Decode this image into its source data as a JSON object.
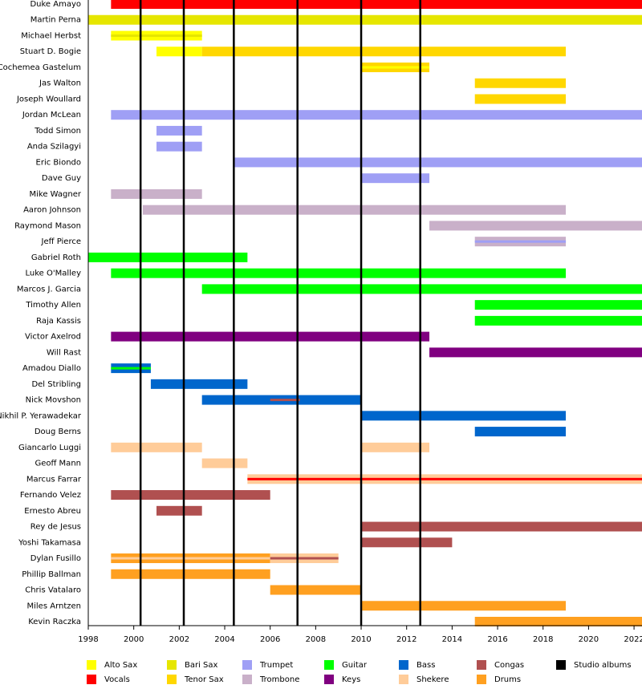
{
  "chart_data": {
    "type": "timeline",
    "xlim": [
      1998,
      2022.35
    ],
    "xticks": [
      1998,
      2000,
      2002,
      2004,
      2006,
      2008,
      2010,
      2012,
      2014,
      2016,
      2018,
      2020,
      2022
    ],
    "roles": [
      {
        "name": "Alto Sax",
        "color": "#ffff00"
      },
      {
        "name": "Vocals",
        "color": "#ff0000"
      },
      {
        "name": "Bari Sax",
        "color": "#e6e600"
      },
      {
        "name": "Tenor Sax",
        "color": "#ffd700"
      },
      {
        "name": "Trumpet",
        "color": "#9f9ff5"
      },
      {
        "name": "Trombone",
        "color": "#c9b0c9"
      },
      {
        "name": "Guitar",
        "color": "#00ff00"
      },
      {
        "name": "Keys",
        "color": "#800080"
      },
      {
        "name": "Bass",
        "color": "#0066cc"
      },
      {
        "name": "Shekere",
        "color": "#ffcc99"
      },
      {
        "name": "Congas",
        "color": "#b05050"
      },
      {
        "name": "Drums",
        "color": "#ffa020"
      }
    ],
    "albums": {
      "name": "Studio albums",
      "color": "#000000",
      "values": [
        2000.3,
        2002.2,
        2004.4,
        2007.2,
        2010.0,
        2012.6
      ]
    },
    "members": [
      {
        "name": "Duke Amayo",
        "bars": [
          {
            "start": 1999,
            "end": 2022.35,
            "role": 1
          }
        ]
      },
      {
        "name": "Martin Perna",
        "bars": [
          {
            "start": 1998,
            "end": 2022.35,
            "role": 2
          }
        ]
      },
      {
        "name": "Michael Herbst",
        "bars": [
          {
            "start": 1999,
            "end": 2003,
            "role": 0,
            "role2": 2
          }
        ]
      },
      {
        "name": "Stuart D. Bogie",
        "bars": [
          {
            "start": 2001,
            "end": 2003,
            "role": 0
          },
          {
            "start": 2003,
            "end": 2019,
            "role": 3
          }
        ]
      },
      {
        "name": "Cochemea Gastelum",
        "bars": [
          {
            "start": 2010,
            "end": 2013,
            "role": 3,
            "role2": 0
          }
        ]
      },
      {
        "name": "Jas Walton",
        "bars": [
          {
            "start": 2015,
            "end": 2019,
            "role": 3
          }
        ]
      },
      {
        "name": "Joseph Woullard",
        "bars": [
          {
            "start": 2015,
            "end": 2019,
            "role": 3
          }
        ]
      },
      {
        "name": "Jordan McLean",
        "bars": [
          {
            "start": 1999,
            "end": 2022.35,
            "role": 4
          }
        ]
      },
      {
        "name": "Todd Simon",
        "bars": [
          {
            "start": 2001,
            "end": 2003,
            "role": 4
          }
        ]
      },
      {
        "name": "Anda Szilagyi",
        "bars": [
          {
            "start": 2001,
            "end": 2003,
            "role": 4
          }
        ]
      },
      {
        "name": "Eric Biondo",
        "bars": [
          {
            "start": 2004.4,
            "end": 2022.35,
            "role": 4
          }
        ]
      },
      {
        "name": "Dave Guy",
        "bars": [
          {
            "start": 2010,
            "end": 2013,
            "role": 4
          }
        ]
      },
      {
        "name": "Mike Wagner",
        "bars": [
          {
            "start": 1999,
            "end": 2003,
            "role": 5
          }
        ]
      },
      {
        "name": "Aaron Johnson",
        "bars": [
          {
            "start": 2000.4,
            "end": 2019,
            "role": 5
          }
        ]
      },
      {
        "name": "Raymond Mason",
        "bars": [
          {
            "start": 2013,
            "end": 2022.35,
            "role": 5
          }
        ]
      },
      {
        "name": "Jeff Pierce",
        "bars": [
          {
            "start": 2015,
            "end": 2019,
            "role": 5,
            "role2": 4
          }
        ]
      },
      {
        "name": "Gabriel Roth",
        "bars": [
          {
            "start": 1998,
            "end": 2005,
            "role": 6
          }
        ]
      },
      {
        "name": "Luke O'Malley",
        "bars": [
          {
            "start": 1999,
            "end": 2019,
            "role": 6
          }
        ]
      },
      {
        "name": "Marcos J. Garcia",
        "bars": [
          {
            "start": 2003,
            "end": 2022.35,
            "role": 6
          }
        ]
      },
      {
        "name": "Timothy Allen",
        "bars": [
          {
            "start": 2015,
            "end": 2022.35,
            "role": 6
          }
        ]
      },
      {
        "name": "Raja Kassis",
        "bars": [
          {
            "start": 2015,
            "end": 2022.35,
            "role": 6
          }
        ]
      },
      {
        "name": "Victor Axelrod",
        "bars": [
          {
            "start": 1999,
            "end": 2013,
            "role": 7
          }
        ]
      },
      {
        "name": "Will Rast",
        "bars": [
          {
            "start": 2013,
            "end": 2022.35,
            "role": 7
          }
        ]
      },
      {
        "name": "Amadou Diallo",
        "bars": [
          {
            "start": 1999,
            "end": 2000.75,
            "role": 8,
            "role2": 6
          }
        ]
      },
      {
        "name": "Del Stribling",
        "bars": [
          {
            "start": 2000.75,
            "end": 2005,
            "role": 8
          }
        ]
      },
      {
        "name": "Nick Movshon",
        "bars": [
          {
            "start": 2003,
            "end": 2010,
            "role": 8
          },
          {
            "start": 2006,
            "end": 2007.3,
            "role": 10,
            "stripe": true
          }
        ]
      },
      {
        "name": "Nikhil P. Yerawadekar",
        "bars": [
          {
            "start": 2010,
            "end": 2019,
            "role": 8
          }
        ]
      },
      {
        "name": "Doug Berns",
        "bars": [
          {
            "start": 2015,
            "end": 2019,
            "role": 8
          }
        ]
      },
      {
        "name": "Giancarlo Luggi",
        "bars": [
          {
            "start": 1999,
            "end": 2003,
            "role": 9
          },
          {
            "start": 2010,
            "end": 2013,
            "role": 9
          }
        ]
      },
      {
        "name": "Geoff Mann",
        "bars": [
          {
            "start": 2003,
            "end": 2005,
            "role": 9
          }
        ]
      },
      {
        "name": "Marcus Farrar",
        "bars": [
          {
            "start": 2005,
            "end": 2022.35,
            "role": 9,
            "role2": 1
          }
        ]
      },
      {
        "name": "Fernando Velez",
        "bars": [
          {
            "start": 1999,
            "end": 2006,
            "role": 10
          }
        ]
      },
      {
        "name": "Ernesto Abreu",
        "bars": [
          {
            "start": 2001,
            "end": 2003,
            "role": 10
          }
        ]
      },
      {
        "name": "Rey de Jesus",
        "bars": [
          {
            "start": 2010,
            "end": 2022.35,
            "role": 10
          }
        ]
      },
      {
        "name": "Yoshi Takamasa",
        "bars": [
          {
            "start": 2010,
            "end": 2014,
            "role": 10
          }
        ]
      },
      {
        "name": "Dylan Fusillo",
        "bars": [
          {
            "start": 1999,
            "end": 2006,
            "role": 11,
            "role2": 9
          },
          {
            "start": 2006,
            "end": 2009,
            "role": 9,
            "role2": 10
          }
        ]
      },
      {
        "name": "Phillip Ballman",
        "bars": [
          {
            "start": 1999,
            "end": 2006,
            "role": 11
          }
        ]
      },
      {
        "name": "Chris Vatalaro",
        "bars": [
          {
            "start": 2006,
            "end": 2010,
            "role": 11
          }
        ]
      },
      {
        "name": "Miles Arntzen",
        "bars": [
          {
            "start": 2010,
            "end": 2019,
            "role": 11
          }
        ]
      },
      {
        "name": "Kevin Raczka",
        "bars": [
          {
            "start": 2015,
            "end": 2022.35,
            "role": 11
          }
        ]
      }
    ]
  }
}
